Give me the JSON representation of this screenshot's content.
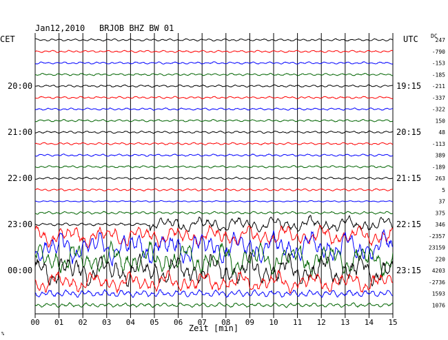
{
  "header": {
    "date": "Jan12,2010",
    "station": "BRJOB BHZ BW 01",
    "left_tz": "CET",
    "right_tz": "UTC",
    "dc_label": "DC"
  },
  "chart_data": {
    "type": "line",
    "title": "Jan12,2010   BRJOB BHZ BW 01",
    "xlabel": "Zeit [min]",
    "x_ticks": [
      "00",
      "01",
      "02",
      "03",
      "04",
      "05",
      "06",
      "07",
      "08",
      "09",
      "10",
      "11",
      "12",
      "13",
      "14",
      "15"
    ],
    "xlim": [
      0,
      15
    ],
    "grid": "vertical lines every minute",
    "left_time_labels": [
      {
        "row": 4,
        "text": "20:00"
      },
      {
        "row": 8,
        "text": "21:00"
      },
      {
        "row": 12,
        "text": "22:00"
      },
      {
        "row": 16,
        "text": "23:00"
      },
      {
        "row": 20,
        "text": "00:00"
      }
    ],
    "right_time_labels": [
      {
        "row": 4,
        "text": "19:15"
      },
      {
        "row": 8,
        "text": "20:15"
      },
      {
        "row": 12,
        "text": "21:15"
      },
      {
        "row": 16,
        "text": "22:15"
      },
      {
        "row": 20,
        "text": "23:15"
      }
    ],
    "dc_offsets": [
      "247",
      "-790",
      "-153",
      "-185",
      "-211",
      "-337",
      "-322",
      "150",
      "48",
      "-113",
      "389",
      "-189",
      "263",
      "5",
      "37",
      "375",
      "346",
      "-2357",
      "23159",
      "220",
      "4203",
      "-2736",
      "1593",
      "1076"
    ],
    "trace_colors": [
      "#000000",
      "#ff0000",
      "#0000ff",
      "#006400"
    ],
    "trace_amplitudes": [
      0.25,
      0.25,
      0.25,
      0.25,
      0.25,
      0.25,
      0.25,
      0.25,
      0.25,
      0.25,
      0.25,
      0.25,
      0.25,
      0.25,
      0.15,
      0.3,
      0.6,
      1.6,
      2.4,
      2.4,
      2.4,
      1.6,
      0.8,
      0.5
    ],
    "event_onset_min": 4.8
  },
  "footer": {
    "mark": "%"
  }
}
